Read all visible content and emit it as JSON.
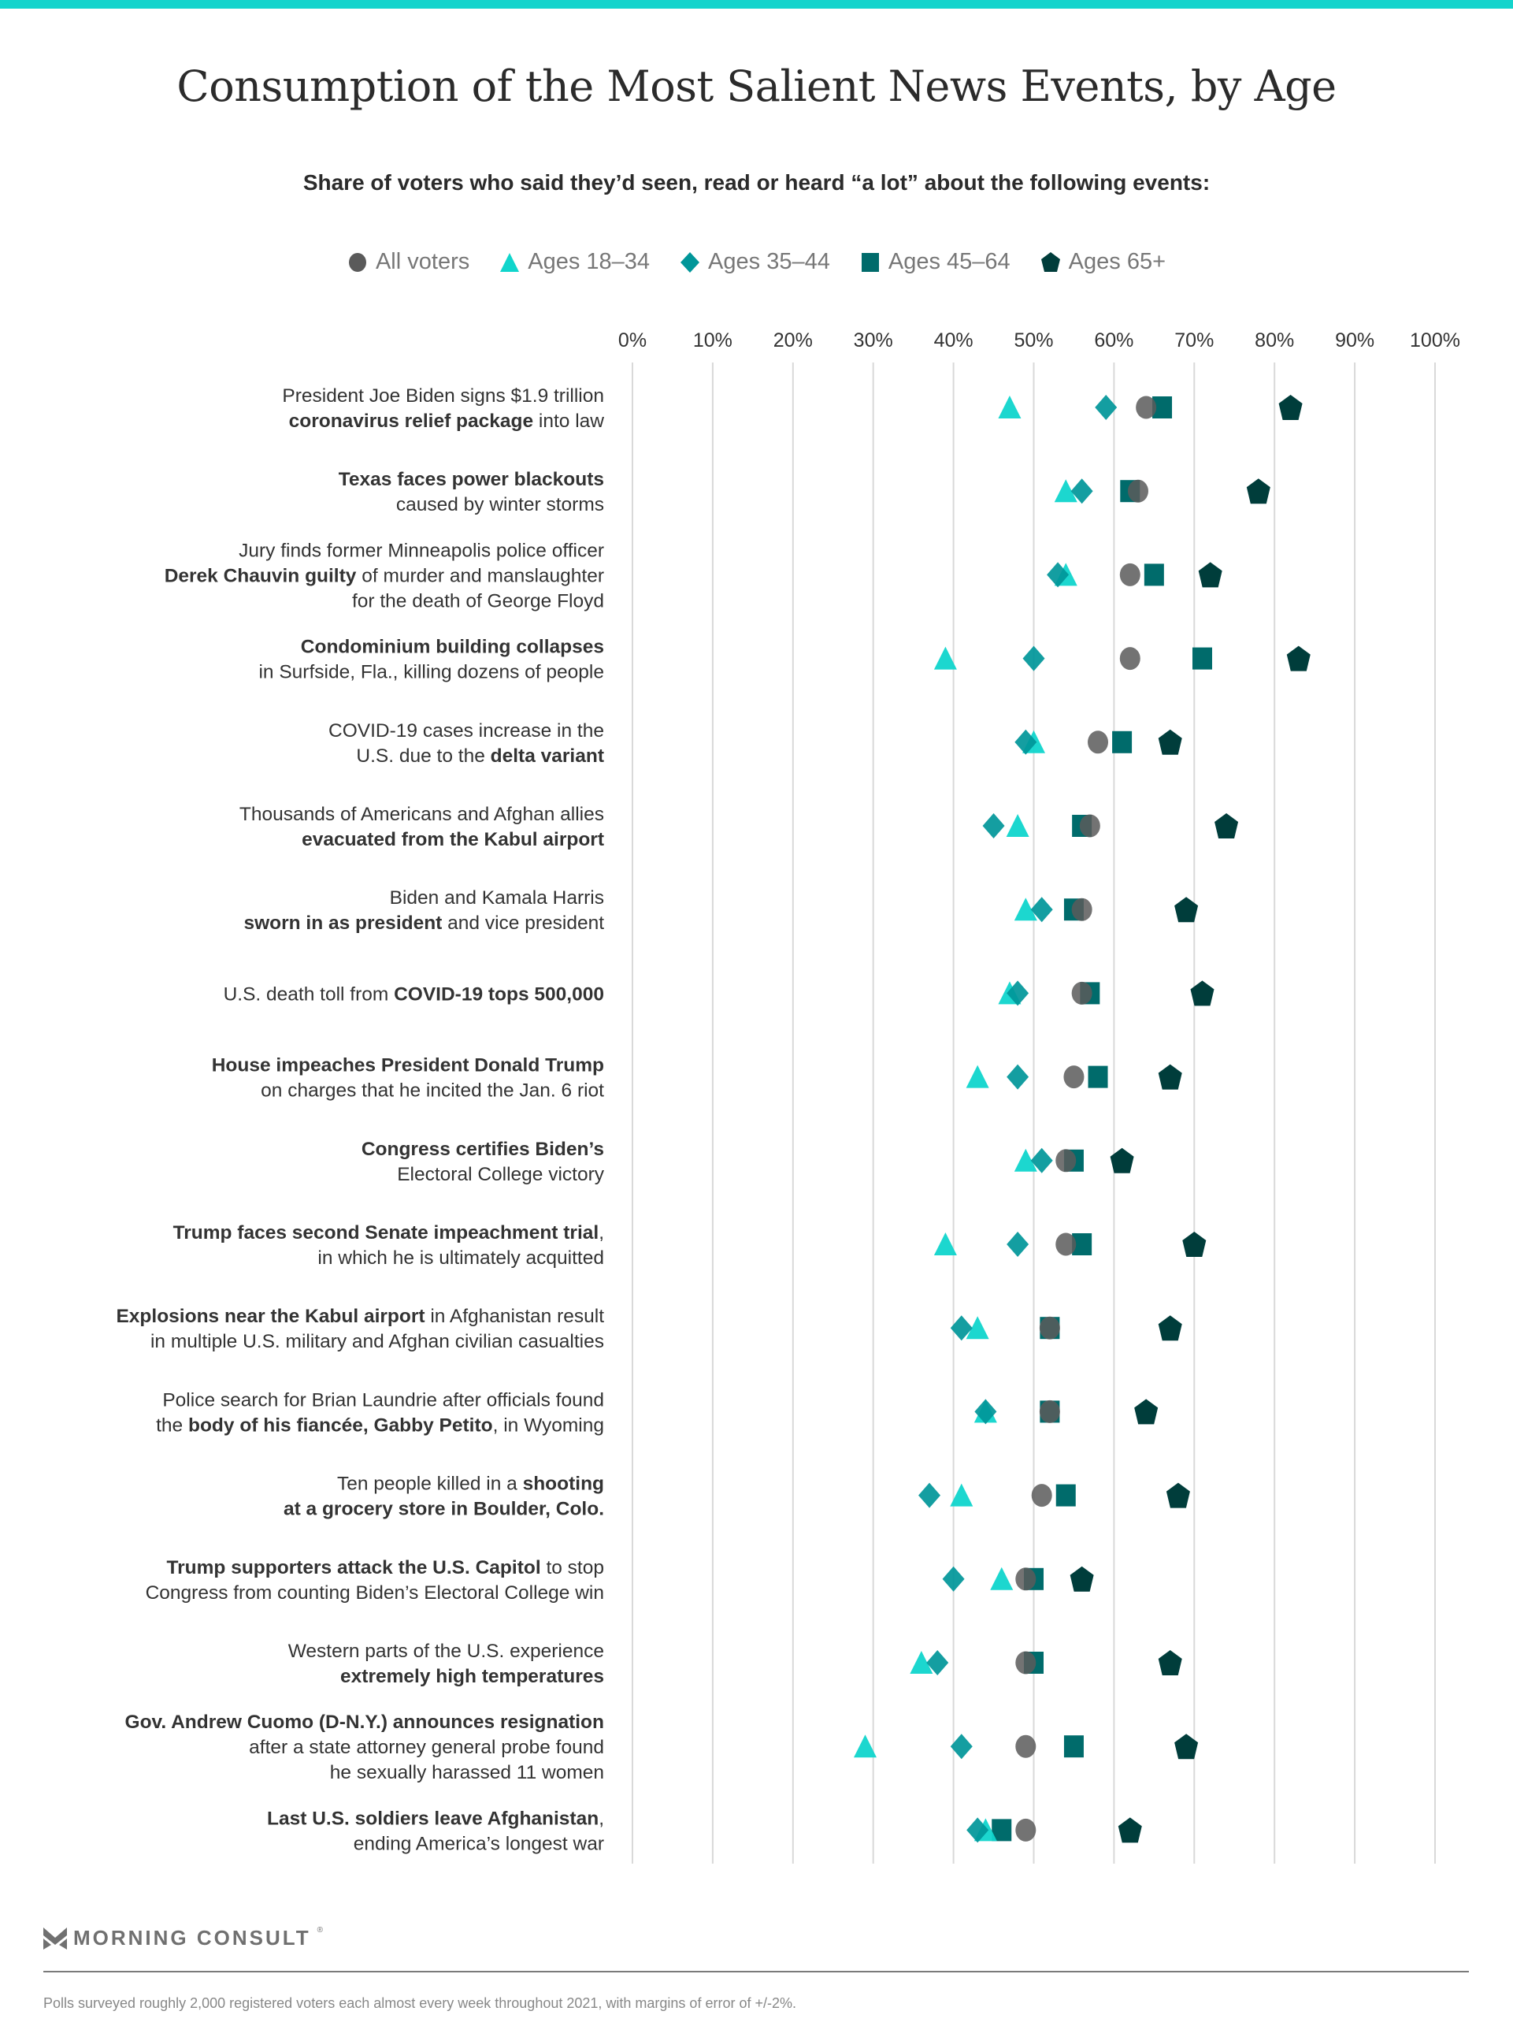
{
  "header": {
    "title": "Consumption of the Most Salient News Events, by Age",
    "subtitle": "Share of voters who said they’d seen, read or heard “a lot” about the following events:"
  },
  "legend": [
    {
      "label": "All voters",
      "shape": "circle-icon",
      "color": "#5a5a5a"
    },
    {
      "label": "Ages 18–34",
      "shape": "triangle-icon",
      "color": "#10d5cc"
    },
    {
      "label": "Ages 35–44",
      "shape": "diamond-icon",
      "color": "#009699"
    },
    {
      "label": "Ages 45–64",
      "shape": "square-icon",
      "color": "#006b6b"
    },
    {
      "label": "Ages 65+",
      "shape": "pentagon-icon",
      "color": "#003d3b"
    }
  ],
  "chart_data": {
    "type": "scatter",
    "title": "Consumption of the Most Salient News Events, by Age",
    "subtitle": "Share of voters who said they’d seen, read or heard “a lot” about the following events:",
    "xlabel": "",
    "ylabel": "",
    "xlim": [
      0,
      100
    ],
    "x_ticks": [
      "0%",
      "10%",
      "20%",
      "30%",
      "40%",
      "50%",
      "60%",
      "70%",
      "80%",
      "90%",
      "100%"
    ],
    "grid": true,
    "legend_position": "top-center",
    "series_names": [
      "All voters",
      "Ages 18–34",
      "Ages 35–44",
      "Ages 45–64",
      "Ages 65+"
    ],
    "categories": [
      [
        [
          {
            "t": "President Joe Biden signs $1.9 trillion",
            "b": false
          }
        ],
        [
          {
            "t": "coronavirus relief package",
            "b": true
          },
          {
            "t": " into law",
            "b": false
          }
        ]
      ],
      [
        [
          {
            "t": "Texas faces power blackouts",
            "b": true
          }
        ],
        [
          {
            "t": "caused by winter storms",
            "b": false
          }
        ]
      ],
      [
        [
          {
            "t": "Jury finds former Minneapolis police officer",
            "b": false
          }
        ],
        [
          {
            "t": "Derek Chauvin guilty",
            "b": true
          },
          {
            "t": " of murder and manslaughter",
            "b": false
          }
        ],
        [
          {
            "t": "for the death of George Floyd",
            "b": false
          }
        ]
      ],
      [
        [
          {
            "t": "Condominium building collapses",
            "b": true
          }
        ],
        [
          {
            "t": "in Surfside, Fla., killing dozens of people",
            "b": false
          }
        ]
      ],
      [
        [
          {
            "t": "COVID-19 cases increase in the",
            "b": false
          }
        ],
        [
          {
            "t": "U.S. due to the ",
            "b": false
          },
          {
            "t": "delta variant",
            "b": true
          }
        ]
      ],
      [
        [
          {
            "t": "Thousands of Americans and Afghan allies",
            "b": false
          }
        ],
        [
          {
            "t": "evacuated from the Kabul airport",
            "b": true
          }
        ]
      ],
      [
        [
          {
            "t": "Biden and Kamala Harris",
            "b": false
          }
        ],
        [
          {
            "t": "sworn in as president",
            "b": true
          },
          {
            "t": " and vice president",
            "b": false
          }
        ]
      ],
      [
        [
          {
            "t": "U.S. death toll from ",
            "b": false
          },
          {
            "t": "COVID-19 tops 500,000",
            "b": true
          }
        ]
      ],
      [
        [
          {
            "t": "House impeaches President Donald Trump",
            "b": true
          }
        ],
        [
          {
            "t": "on charges that he incited the Jan. 6 riot",
            "b": false
          }
        ]
      ],
      [
        [
          {
            "t": "Congress certifies Biden’s",
            "b": true
          }
        ],
        [
          {
            "t": "Electoral College victory",
            "b": false
          }
        ]
      ],
      [
        [
          {
            "t": "Trump faces second Senate impeachment trial",
            "b": true
          },
          {
            "t": ",",
            "b": false
          }
        ],
        [
          {
            "t": "in which he is ultimately acquitted",
            "b": false
          }
        ]
      ],
      [
        [
          {
            "t": "Explosions near the Kabul airport",
            "b": true
          },
          {
            "t": " in Afghanistan result ",
            "b": false
          }
        ],
        [
          {
            "t": "in multiple U.S. military and Afghan civilian casualties",
            "b": false
          }
        ]
      ],
      [
        [
          {
            "t": "Police search for Brian Laundrie after officials found",
            "b": false
          }
        ],
        [
          {
            "t": "the ",
            "b": false
          },
          {
            "t": "body of his fiancée, Gabby Petito",
            "b": true
          },
          {
            "t": ", in Wyoming",
            "b": false
          }
        ]
      ],
      [
        [
          {
            "t": "Ten people killed in a ",
            "b": false
          },
          {
            "t": "shooting",
            "b": true
          }
        ],
        [
          {
            "t": "at a grocery store in Boulder, Colo.",
            "b": true
          }
        ]
      ],
      [
        [
          {
            "t": "Trump supporters attack the U.S. Capitol",
            "b": true
          },
          {
            "t": " to stop",
            "b": false
          }
        ],
        [
          {
            "t": "Congress from counting Biden’s Electoral College win",
            "b": false
          }
        ]
      ],
      [
        [
          {
            "t": "Western parts of the U.S. experience",
            "b": false
          }
        ],
        [
          {
            "t": "extremely high temperatures",
            "b": true
          }
        ]
      ],
      [
        [
          {
            "t": "Gov. Andrew Cuomo (D-N.Y.) announces resignation",
            "b": true
          }
        ],
        [
          {
            "t": "after a state attorney general probe found",
            "b": false
          }
        ],
        [
          {
            "t": "he sexually harassed 11 women",
            "b": false
          }
        ]
      ],
      [
        [
          {
            "t": "Last U.S. soldiers leave Afghanistan",
            "b": true
          },
          {
            "t": ",",
            "b": false
          }
        ],
        [
          {
            "t": "ending America’s longest war",
            "b": false
          }
        ]
      ]
    ],
    "series": [
      {
        "name": "All voters",
        "shape": "circle",
        "color": "#5a5a5a",
        "values": [
          64,
          63,
          62,
          62,
          58,
          57,
          56,
          56,
          55,
          54,
          54,
          52,
          52,
          51,
          49,
          49,
          49,
          49
        ]
      },
      {
        "name": "Ages 18–34",
        "shape": "triangle",
        "color": "#10d5cc",
        "values": [
          47,
          54,
          54,
          39,
          50,
          48,
          49,
          47,
          43,
          49,
          39,
          43,
          44,
          41,
          46,
          36,
          29,
          44
        ]
      },
      {
        "name": "Ages 35–44",
        "shape": "diamond",
        "color": "#009699",
        "values": [
          59,
          56,
          53,
          50,
          49,
          45,
          51,
          48,
          48,
          51,
          48,
          41,
          44,
          37,
          40,
          38,
          41,
          43
        ]
      },
      {
        "name": "Ages 45–64",
        "shape": "square",
        "color": "#006b6b",
        "values": [
          66,
          62,
          65,
          71,
          61,
          56,
          55,
          57,
          58,
          55,
          56,
          52,
          52,
          54,
          50,
          50,
          55,
          46
        ]
      },
      {
        "name": "Ages 65+",
        "shape": "pentagon",
        "color": "#003d3b",
        "values": [
          82,
          78,
          72,
          83,
          67,
          74,
          69,
          71,
          67,
          61,
          70,
          67,
          64,
          68,
          56,
          67,
          69,
          62
        ]
      }
    ]
  },
  "footer": {
    "brand": "MORNING CONSULT",
    "registered_mark": "®",
    "note": "Polls surveyed roughly 2,000 registered voters each almost every week throughout 2021, with margins of error of +/-2%."
  }
}
